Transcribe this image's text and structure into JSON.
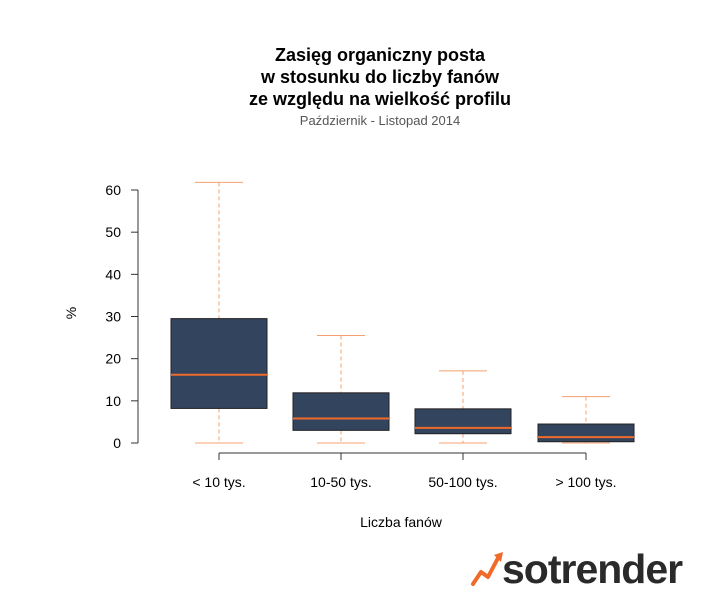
{
  "chart_data": {
    "type": "boxplot",
    "title_lines": [
      "Zasięg organiczny posta",
      "w stosunku do liczby fanów",
      "ze względu na wielkość profilu"
    ],
    "subtitle": "Październik - Listopad 2014",
    "xlabel": "Liczba fanów",
    "ylabel": "%",
    "ylim": [
      0,
      60
    ],
    "yticks": [
      0,
      10,
      20,
      30,
      40,
      50,
      60
    ],
    "categories": [
      "< 10 tys.",
      "10-50 tys.",
      "50-100 tys.",
      "> 100 tys."
    ],
    "boxes": [
      {
        "category": "< 10 tys.",
        "min": 0,
        "q1": 8.2,
        "median": 16.2,
        "q3": 29.5,
        "max": 61.8
      },
      {
        "category": "10-50 tys.",
        "min": 0,
        "q1": 3.0,
        "median": 5.8,
        "q3": 11.9,
        "max": 25.5
      },
      {
        "category": "50-100 tys.",
        "min": 0,
        "q1": 2.2,
        "median": 3.6,
        "q3": 8.1,
        "max": 17.1
      },
      {
        "category": "> 100 tys.",
        "min": 0,
        "q1": 0.3,
        "median": 1.4,
        "q3": 4.5,
        "max": 11.0
      }
    ],
    "grid": false,
    "colors": {
      "box_fill": "#33445e",
      "median": "#f06a2b",
      "whisker": "#f4a070",
      "axis": "#333333"
    }
  },
  "brand": {
    "name": "sotrender",
    "icon": "trend-arrow-icon",
    "accent": "#f06a2b"
  }
}
